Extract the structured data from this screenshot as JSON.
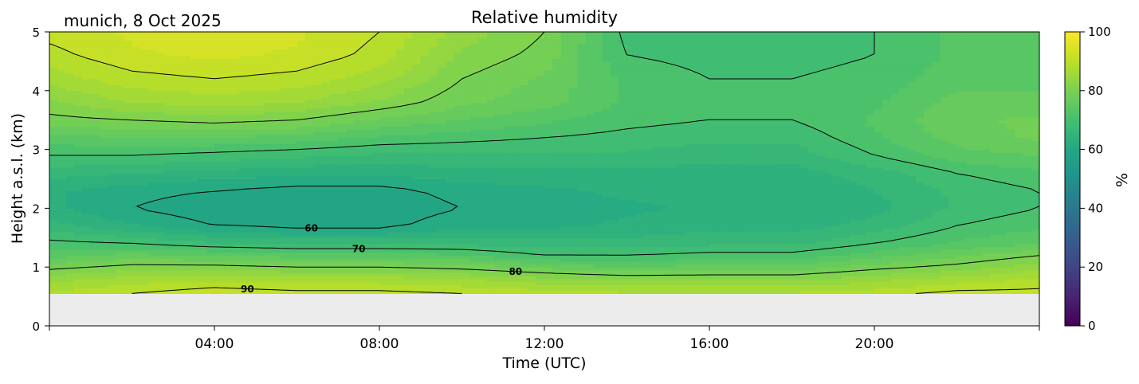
{
  "chart_data": {
    "type": "heatmap",
    "title": "Relative humidity",
    "subtitle": "munich, 8 Oct 2025",
    "xlabel": "Time (UTC)",
    "ylabel": "Height a.s.l. (km)",
    "xlim": [
      "00:00",
      "24:00"
    ],
    "ylim": [
      0,
      5
    ],
    "x_ticks": [
      "04:00",
      "08:00",
      "12:00",
      "16:00",
      "20:00"
    ],
    "y_ticks": [
      "0",
      "1",
      "2",
      "3",
      "4",
      "5"
    ],
    "colorbar": {
      "label": "%",
      "range": [
        0,
        100
      ],
      "ticks": [
        "0",
        "20",
        "40",
        "60",
        "80",
        "100"
      ],
      "colormap": "viridis"
    },
    "contour_labels": [
      "60",
      "70",
      "80",
      "90"
    ],
    "data_bottom_km": 0.55,
    "no_data_color": "#ececec",
    "profiles": {
      "heights_km": [
        0.55,
        0.8,
        1.0,
        1.2,
        1.4,
        1.7,
        2.0,
        2.3,
        2.6,
        2.9,
        3.2,
        3.5,
        3.8,
        4.2,
        4.6,
        5.0
      ],
      "times_h": [
        0,
        2,
        4,
        6,
        8,
        10,
        12,
        14,
        16,
        18,
        20,
        22,
        24
      ],
      "rh_percent": [
        [
          88,
          84,
          79,
          74,
          71,
          66,
          63,
          63,
          66,
          70,
          74,
          79,
          82,
          86,
          89,
          91
        ],
        [
          90,
          86,
          81,
          76,
          70,
          63,
          60,
          61,
          65,
          70,
          75,
          80,
          85,
          89,
          92,
          93
        ],
        [
          92,
          87,
          81,
          75,
          68,
          60,
          58,
          60,
          64,
          69,
          75,
          81,
          86,
          90,
          93,
          95
        ],
        [
          91,
          86,
          80,
          74,
          67,
          59,
          58,
          59,
          63,
          68,
          74,
          80,
          85,
          89,
          92,
          93
        ],
        [
          91,
          86,
          80,
          74,
          67,
          59,
          58,
          59,
          63,
          67,
          72,
          77,
          82,
          86,
          89,
          90
        ],
        [
          90,
          85,
          79,
          73,
          67,
          62,
          60,
          61,
          64,
          67,
          71,
          75,
          78,
          80,
          82,
          84
        ],
        [
          89,
          83,
          77,
          70,
          66,
          62,
          61,
          62,
          64,
          67,
          70,
          73,
          76,
          77,
          79,
          80
        ],
        [
          88,
          82,
          75,
          70,
          66,
          63,
          62,
          63,
          64,
          67,
          69,
          71,
          72,
          72,
          70,
          69
        ],
        [
          88,
          82,
          76,
          71,
          67,
          64,
          63,
          63,
          64,
          66,
          68,
          70,
          71,
          70,
          69,
          68
        ],
        [
          88,
          82,
          76,
          71,
          67,
          64,
          63,
          63,
          64,
          66,
          68,
          70,
          71,
          70,
          69,
          69
        ],
        [
          89,
          84,
          79,
          74,
          70,
          66,
          64,
          65,
          66,
          70,
          72,
          73,
          72,
          71,
          70,
          70
        ],
        [
          91,
          86,
          81,
          77,
          73,
          70,
          68,
          68,
          70,
          74,
          76,
          77,
          76,
          74,
          73,
          73
        ],
        [
          91,
          88,
          84,
          80,
          75,
          72,
          70,
          70,
          72,
          75,
          78,
          78,
          76,
          74,
          73,
          73
        ]
      ]
    }
  }
}
